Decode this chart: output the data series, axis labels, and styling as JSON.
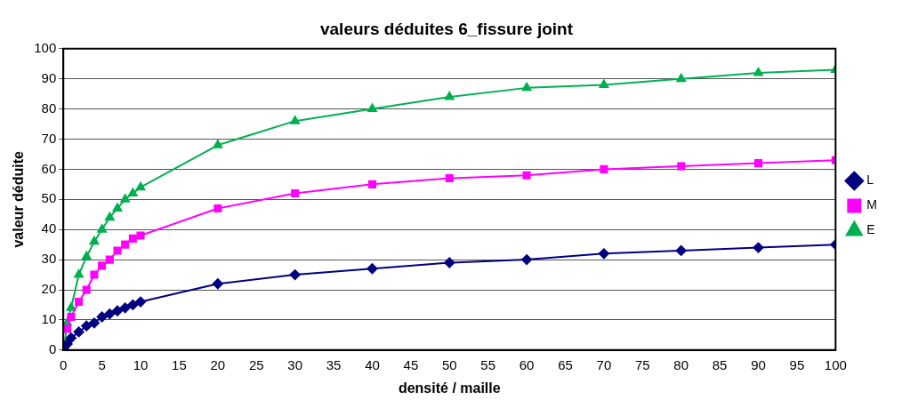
{
  "chart_data": {
    "type": "line",
    "title": "valeurs déduites 6_fissure joint",
    "xlabel": "densité / maille",
    "ylabel": "valeur déduite",
    "x": [
      0.1,
      0.5,
      1,
      2,
      3,
      4,
      5,
      6,
      7,
      8,
      9,
      10,
      20,
      30,
      40,
      50,
      60,
      70,
      80,
      90,
      100
    ],
    "series": [
      {
        "name": "L",
        "color": "#000080",
        "marker": "diamond",
        "values": [
          0,
          2,
          4,
          6,
          8,
          9,
          11,
          12,
          13,
          14,
          15,
          16,
          22,
          25,
          27,
          29,
          30,
          32,
          33,
          34,
          35
        ]
      },
      {
        "name": "M",
        "color": "#ff00ff",
        "marker": "square",
        "values": [
          null,
          7,
          11,
          16,
          20,
          25,
          28,
          30,
          33,
          35,
          37,
          38,
          47,
          52,
          55,
          57,
          58,
          60,
          61,
          62,
          63
        ]
      },
      {
        "name": "E",
        "color": "#00b050",
        "marker": "triangle",
        "values": [
          1,
          9,
          14,
          25,
          31,
          36,
          40,
          44,
          47,
          50,
          52,
          54,
          68,
          76,
          80,
          84,
          87,
          88,
          90,
          92,
          93
        ]
      }
    ],
    "xlim": [
      0,
      100
    ],
    "xticks": [
      0,
      5,
      10,
      15,
      20,
      25,
      30,
      35,
      40,
      45,
      50,
      55,
      60,
      65,
      70,
      75,
      80,
      85,
      90,
      95,
      100
    ],
    "ylim": [
      0,
      100
    ],
    "yticks": [
      0,
      10,
      20,
      30,
      40,
      50,
      60,
      70,
      80,
      90,
      100
    ],
    "grid": "y",
    "legend": "right",
    "line_style": "solid"
  }
}
